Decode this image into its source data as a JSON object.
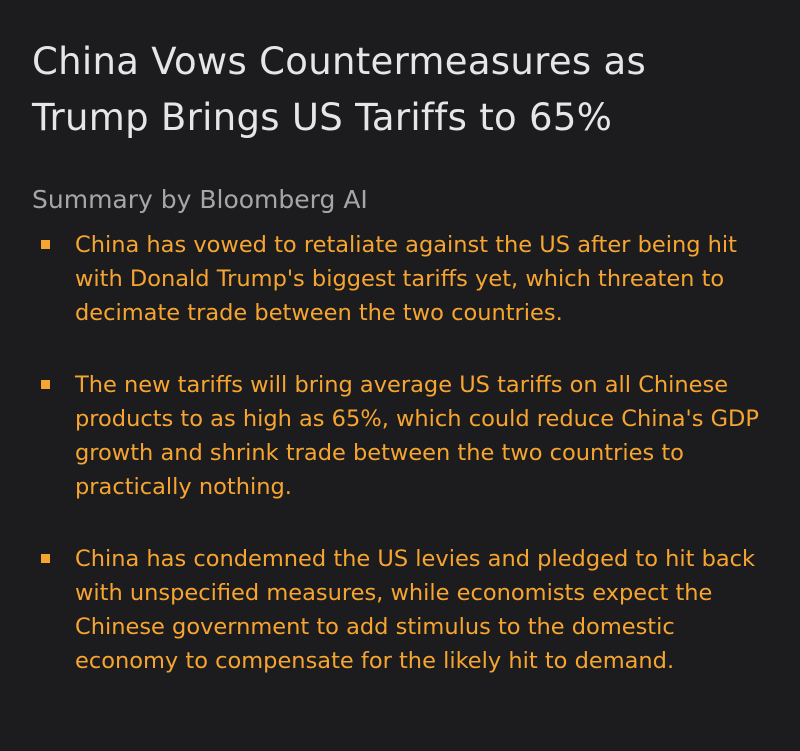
{
  "article": {
    "headline": "China Vows Countermeasures as Trump Brings US Tariffs to 65%",
    "summary_label": "Summary by Bloomberg AI",
    "bullets": [
      "China has vowed to retaliate against the US after being hit with Donald Trump's biggest tariffs yet, which threaten to decimate trade between the two countries.",
      "The new tariffs will bring average US tariffs on all Chinese products to as high as 65%, which could reduce China's GDP growth and shrink trade between the two countries to practically nothing.",
      "China has condemned the US levies and pledged to hit back with unspecified measures, while economists expect the Chinese government to add stimulus to the domestic economy to compensate for the likely hit to demand."
    ]
  },
  "colors": {
    "background": "#1c1b1d",
    "headline": "#e6e6e6",
    "summary_label": "#a6a6a6",
    "accent": "#f6a531"
  }
}
